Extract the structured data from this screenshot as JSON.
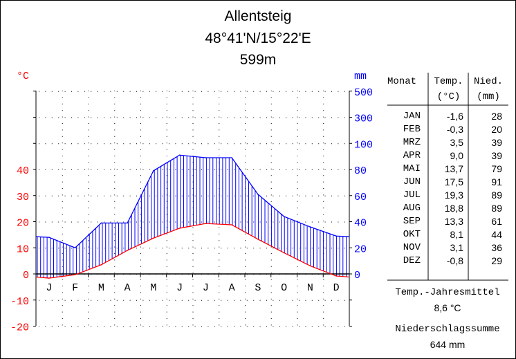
{
  "chart_data": {
    "type": "climate-diagram",
    "title": "Allentsteig",
    "subtitle": "48°41'N/15°22'E",
    "elevation": "599m",
    "temp_unit": "°C",
    "precip_unit": "mm",
    "temp_ticks": [
      "-20",
      "-10",
      "0",
      "10",
      "20",
      "30",
      "40"
    ],
    "precip_ticks": [
      "0",
      "20",
      "40",
      "60",
      "80",
      "100",
      "300",
      "500"
    ],
    "month_labels": [
      "J",
      "F",
      "M",
      "A",
      "M",
      "J",
      "J",
      "A",
      "S",
      "O",
      "N",
      "D"
    ],
    "temp_ylim": [
      -20,
      70
    ],
    "precip_scale": "10 °C = 20 mm up to 100 mm, 200 mm per 10 °C above",
    "colors": {
      "temperature": "#ff0000",
      "precipitation": "#0000ff",
      "humid_hatch": "#0000ff"
    },
    "series": [
      {
        "name": "Temp.",
        "values": [
          -1.6,
          -0.3,
          3.5,
          9.0,
          13.7,
          17.5,
          19.3,
          18.8,
          13.3,
          8.1,
          3.1,
          -0.8
        ]
      },
      {
        "name": "Nied.",
        "values": [
          28,
          20,
          39,
          39,
          79,
          91,
          89,
          89,
          61,
          44,
          36,
          29
        ]
      }
    ]
  },
  "table": {
    "headers": {
      "month": "Monat",
      "temp": "Temp.",
      "temp_unit": "(°C)",
      "precip": "Nied.",
      "precip_unit": "(mm)"
    },
    "months": [
      "JAN",
      "FEB",
      "MRZ",
      "APR",
      "MAI",
      "JUN",
      "JUL",
      "AUG",
      "SEP",
      "OKT",
      "NOV",
      "DEZ"
    ],
    "temps": [
      "-1,6",
      "-0,3",
      "3,5",
      "9,0",
      "13,7",
      "17,5",
      "19,3",
      "18,8",
      "13,3",
      "8,1",
      "3,1",
      "-0,8"
    ],
    "precips": [
      "28",
      "20",
      "39",
      "39",
      "79",
      "91",
      "89",
      "89",
      "61",
      "44",
      "36",
      "29"
    ]
  },
  "summary": {
    "mean_label": "Temp.-Jahresmittel",
    "mean_value": "8,6 °C",
    "sum_label": "Niederschlagssumme",
    "sum_value": "644 mm"
  }
}
